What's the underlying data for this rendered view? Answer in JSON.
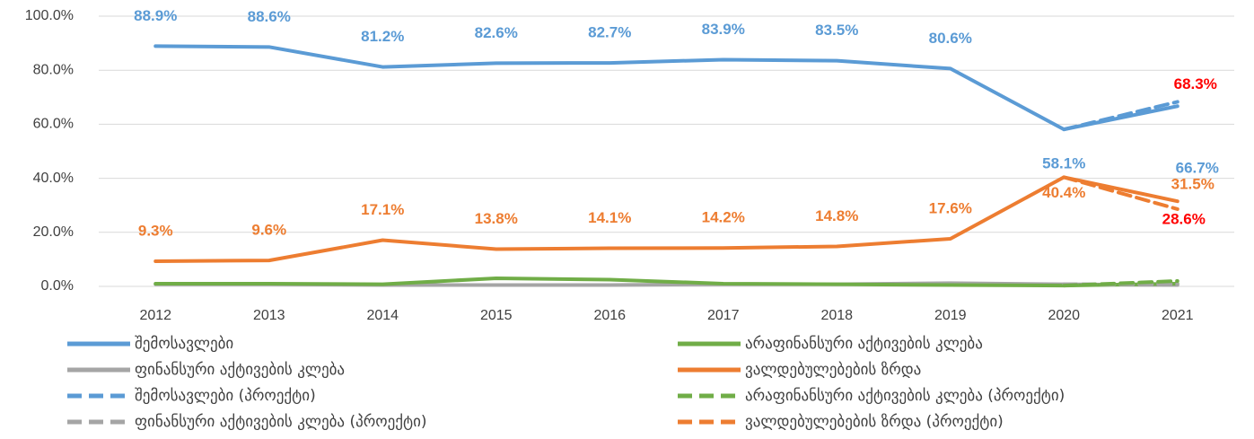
{
  "chart_data": {
    "type": "line",
    "categories": [
      "2012",
      "2013",
      "2014",
      "2015",
      "2016",
      "2017",
      "2018",
      "2019",
      "2020",
      "2021"
    ],
    "ylim": [
      0,
      100
    ],
    "yticks": [
      {
        "value": 0,
        "label": "0.0%"
      },
      {
        "value": 20,
        "label": "20.0%"
      },
      {
        "value": 40,
        "label": "40.0%"
      },
      {
        "value": 60,
        "label": "60.0%"
      },
      {
        "value": 80,
        "label": "80.0%"
      },
      {
        "value": 100,
        "label": "100.0%"
      }
    ],
    "grid": true,
    "legend": "bottom",
    "series": [
      {
        "name": "შემოსავლები",
        "color": "#5b9bd5",
        "dashed": false,
        "label_color": "#5b9bd5",
        "values": [
          88.9,
          88.6,
          81.2,
          82.6,
          82.7,
          83.9,
          83.5,
          80.6,
          58.1,
          66.7
        ],
        "value_labels": [
          "88.9%",
          "88.6%",
          "81.2%",
          "82.6%",
          "82.7%",
          "83.9%",
          "83.5%",
          "80.6%",
          "58.1%",
          "66.7%"
        ]
      },
      {
        "name": "არაფინანსური აქტივების კლება",
        "color": "#70ad47",
        "dashed": false,
        "values": [
          1.0,
          1.0,
          0.8,
          3.0,
          2.5,
          1.0,
          0.8,
          0.5,
          0.3,
          1.0
        ]
      },
      {
        "name": "ფინანსური აქტივების კლება",
        "color": "#a5a5a5",
        "dashed": false,
        "values": [
          0.8,
          0.8,
          0.5,
          0.5,
          0.5,
          0.8,
          0.8,
          1.2,
          0.8,
          0.5
        ]
      },
      {
        "name": "ვალდებულებების ზრდა",
        "color": "#ed7d31",
        "dashed": false,
        "label_color": "#ed7d31",
        "values": [
          9.3,
          9.6,
          17.1,
          13.8,
          14.1,
          14.2,
          14.8,
          17.6,
          40.4,
          31.5
        ],
        "value_labels": [
          "9.3%",
          "9.6%",
          "17.1%",
          "13.8%",
          "14.1%",
          "14.2%",
          "14.8%",
          "17.6%",
          "40.4%",
          "31.5%"
        ]
      },
      {
        "name": "შემოსავლები (პროექტი)",
        "color": "#5b9bd5",
        "dashed": true,
        "label_color": "#ff0000",
        "values": [
          null,
          null,
          null,
          null,
          null,
          null,
          null,
          null,
          58.1,
          68.3
        ],
        "value_labels": [
          null,
          null,
          null,
          null,
          null,
          null,
          null,
          null,
          null,
          "68.3%"
        ]
      },
      {
        "name": "არაფინანსური აქტივების კლება (პროექტი)",
        "color": "#70ad47",
        "dashed": true,
        "values": [
          null,
          null,
          null,
          null,
          null,
          null,
          null,
          null,
          0.3,
          2.0
        ]
      },
      {
        "name": "ფინანსური აქტივების კლება (პროექტი)",
        "color": "#a5a5a5",
        "dashed": true,
        "values": [
          null,
          null,
          null,
          null,
          null,
          null,
          null,
          null,
          0.8,
          0.8
        ]
      },
      {
        "name": "ვალდებულებების ზრდა (პროექტი)",
        "color": "#ed7d31",
        "dashed": true,
        "label_color": "#ff0000",
        "values": [
          null,
          null,
          null,
          null,
          null,
          null,
          null,
          null,
          40.4,
          28.6
        ],
        "value_labels": [
          null,
          null,
          null,
          null,
          null,
          null,
          null,
          null,
          null,
          "28.6%"
        ]
      }
    ]
  }
}
